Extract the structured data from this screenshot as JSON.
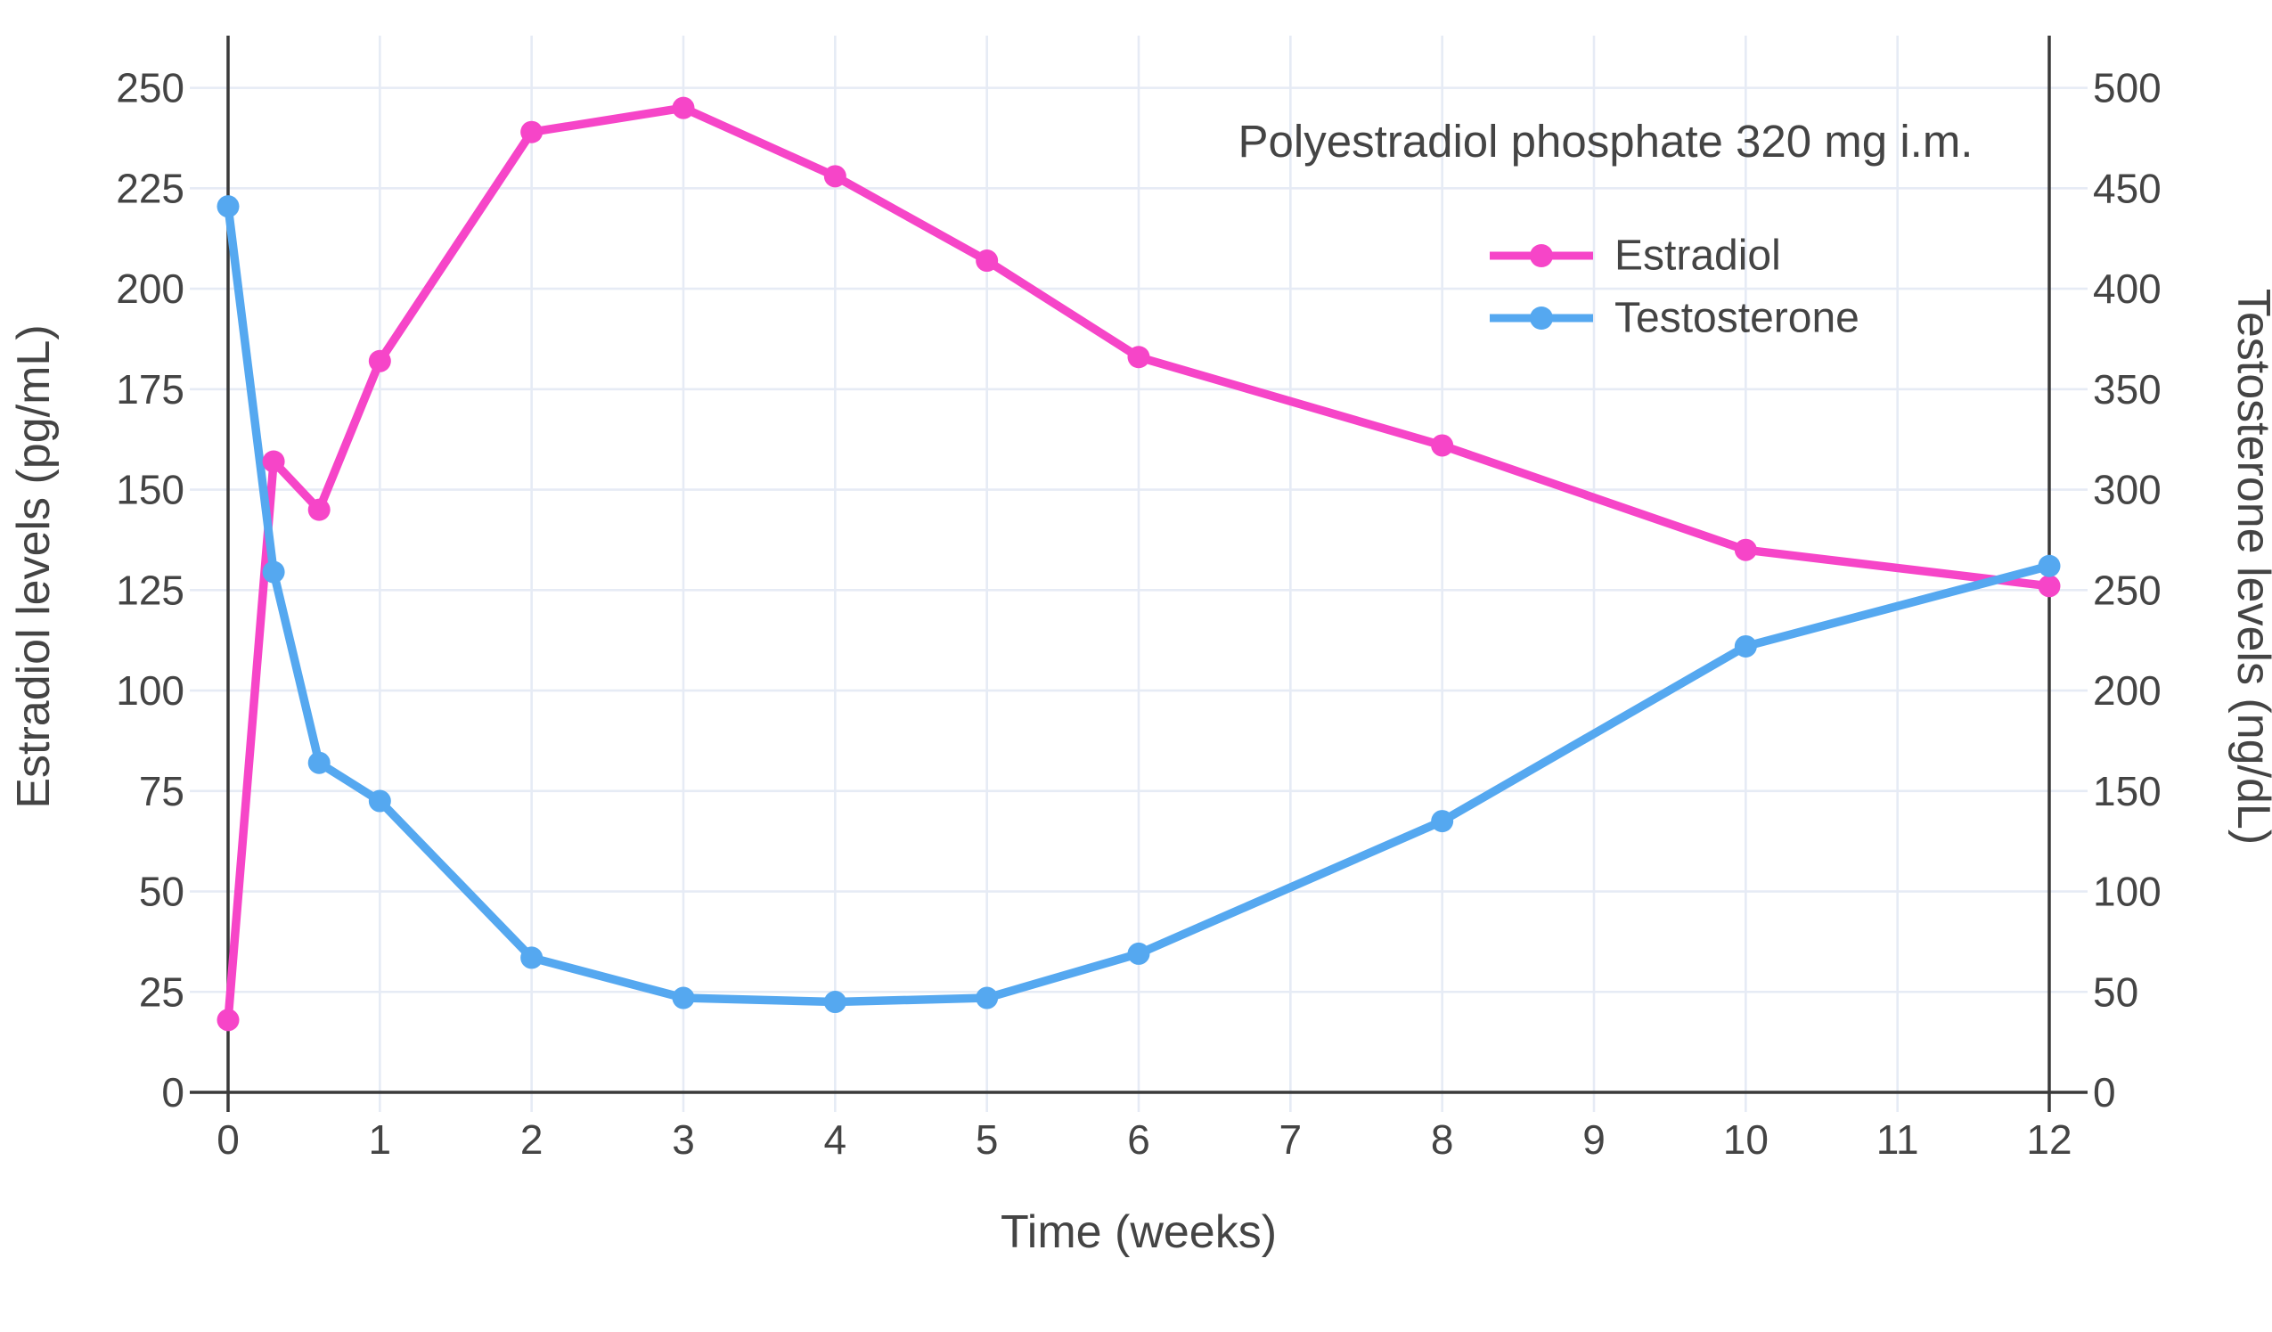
{
  "colors": {
    "estradiol": "#f645c8",
    "testosterone": "#55a8f0",
    "grid": "#e6ebf5",
    "axis": "#3a3a3a",
    "text": "#444444",
    "background": "#ffffff"
  },
  "chart_data": {
    "type": "line",
    "title": "Polyestradiol phosphate 320 mg i.m.",
    "xlabel": "Time (weeks)",
    "ylabel_left": "Estradiol levels (pg/mL)",
    "ylabel_right": "Testosterone levels (ng/dL)",
    "x": [
      0,
      0.3,
      0.6,
      1,
      2,
      3,
      4,
      5,
      6,
      8,
      10,
      12
    ],
    "series": [
      {
        "name": "Estradiol",
        "axis": "left",
        "unit": "pg/mL",
        "color": "#f645c8",
        "values": [
          18,
          157,
          145,
          182,
          239,
          245,
          228,
          207,
          183,
          161,
          135,
          126
        ]
      },
      {
        "name": "Testosterone",
        "axis": "right",
        "unit": "ng/dL",
        "color": "#55a8f0",
        "values": [
          441,
          259,
          164,
          145,
          67,
          47,
          45,
          47,
          69,
          135,
          222,
          262
        ]
      }
    ],
    "x_ticks": [
      0,
      1,
      2,
      3,
      4,
      5,
      6,
      7,
      8,
      9,
      10,
      11,
      12
    ],
    "y_left_ticks": [
      0,
      25,
      50,
      75,
      100,
      125,
      150,
      175,
      200,
      225,
      250
    ],
    "y_right_ticks": [
      0,
      50,
      100,
      150,
      200,
      250,
      300,
      350,
      400,
      450,
      500
    ],
    "x_range": [
      0,
      12
    ],
    "y_left_range": [
      0,
      263
    ],
    "y_right_range": [
      0,
      526
    ],
    "grid": true,
    "legend_position": "inside-top-right"
  }
}
